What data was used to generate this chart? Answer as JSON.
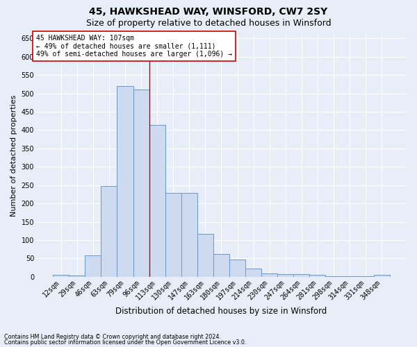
{
  "title1": "45, HAWKSHEAD WAY, WINSFORD, CW7 2SY",
  "title2": "Size of property relative to detached houses in Winsford",
  "xlabel": "Distribution of detached houses by size in Winsford",
  "ylabel": "Number of detached properties",
  "categories": [
    "12sqm",
    "29sqm",
    "46sqm",
    "63sqm",
    "79sqm",
    "96sqm",
    "113sqm",
    "130sqm",
    "147sqm",
    "163sqm",
    "180sqm",
    "197sqm",
    "214sqm",
    "230sqm",
    "247sqm",
    "264sqm",
    "281sqm",
    "298sqm",
    "314sqm",
    "331sqm",
    "348sqm"
  ],
  "values": [
    5,
    3,
    58,
    248,
    520,
    510,
    415,
    228,
    228,
    117,
    63,
    47,
    22,
    10,
    8,
    8,
    5,
    1,
    1,
    1,
    5
  ],
  "bar_color": "#cddaf0",
  "bar_edge_color": "#6a97c8",
  "vline_x_idx": 6,
  "vline_color": "#cc0000",
  "annotation_line1": "45 HAWKSHEAD WAY: 107sqm",
  "annotation_line2": "← 49% of detached houses are smaller (1,111)",
  "annotation_line3": "49% of semi-detached houses are larger (1,096) →",
  "annotation_box_color": "#ffffff",
  "annotation_box_edge": "#cc0000",
  "ylim": [
    0,
    660
  ],
  "yticks": [
    0,
    50,
    100,
    150,
    200,
    250,
    300,
    350,
    400,
    450,
    500,
    550,
    600,
    650
  ],
  "background_color": "#e8eef7",
  "grid_color": "#d0d8e8",
  "footer1": "Contains HM Land Registry data © Crown copyright and database right 2024.",
  "footer2": "Contains public sector information licensed under the Open Government Licence v3.0.",
  "title1_fontsize": 10,
  "title2_fontsize": 9,
  "tick_fontsize": 7,
  "ylabel_fontsize": 8,
  "xlabel_fontsize": 8.5,
  "footer_fontsize": 5.8
}
